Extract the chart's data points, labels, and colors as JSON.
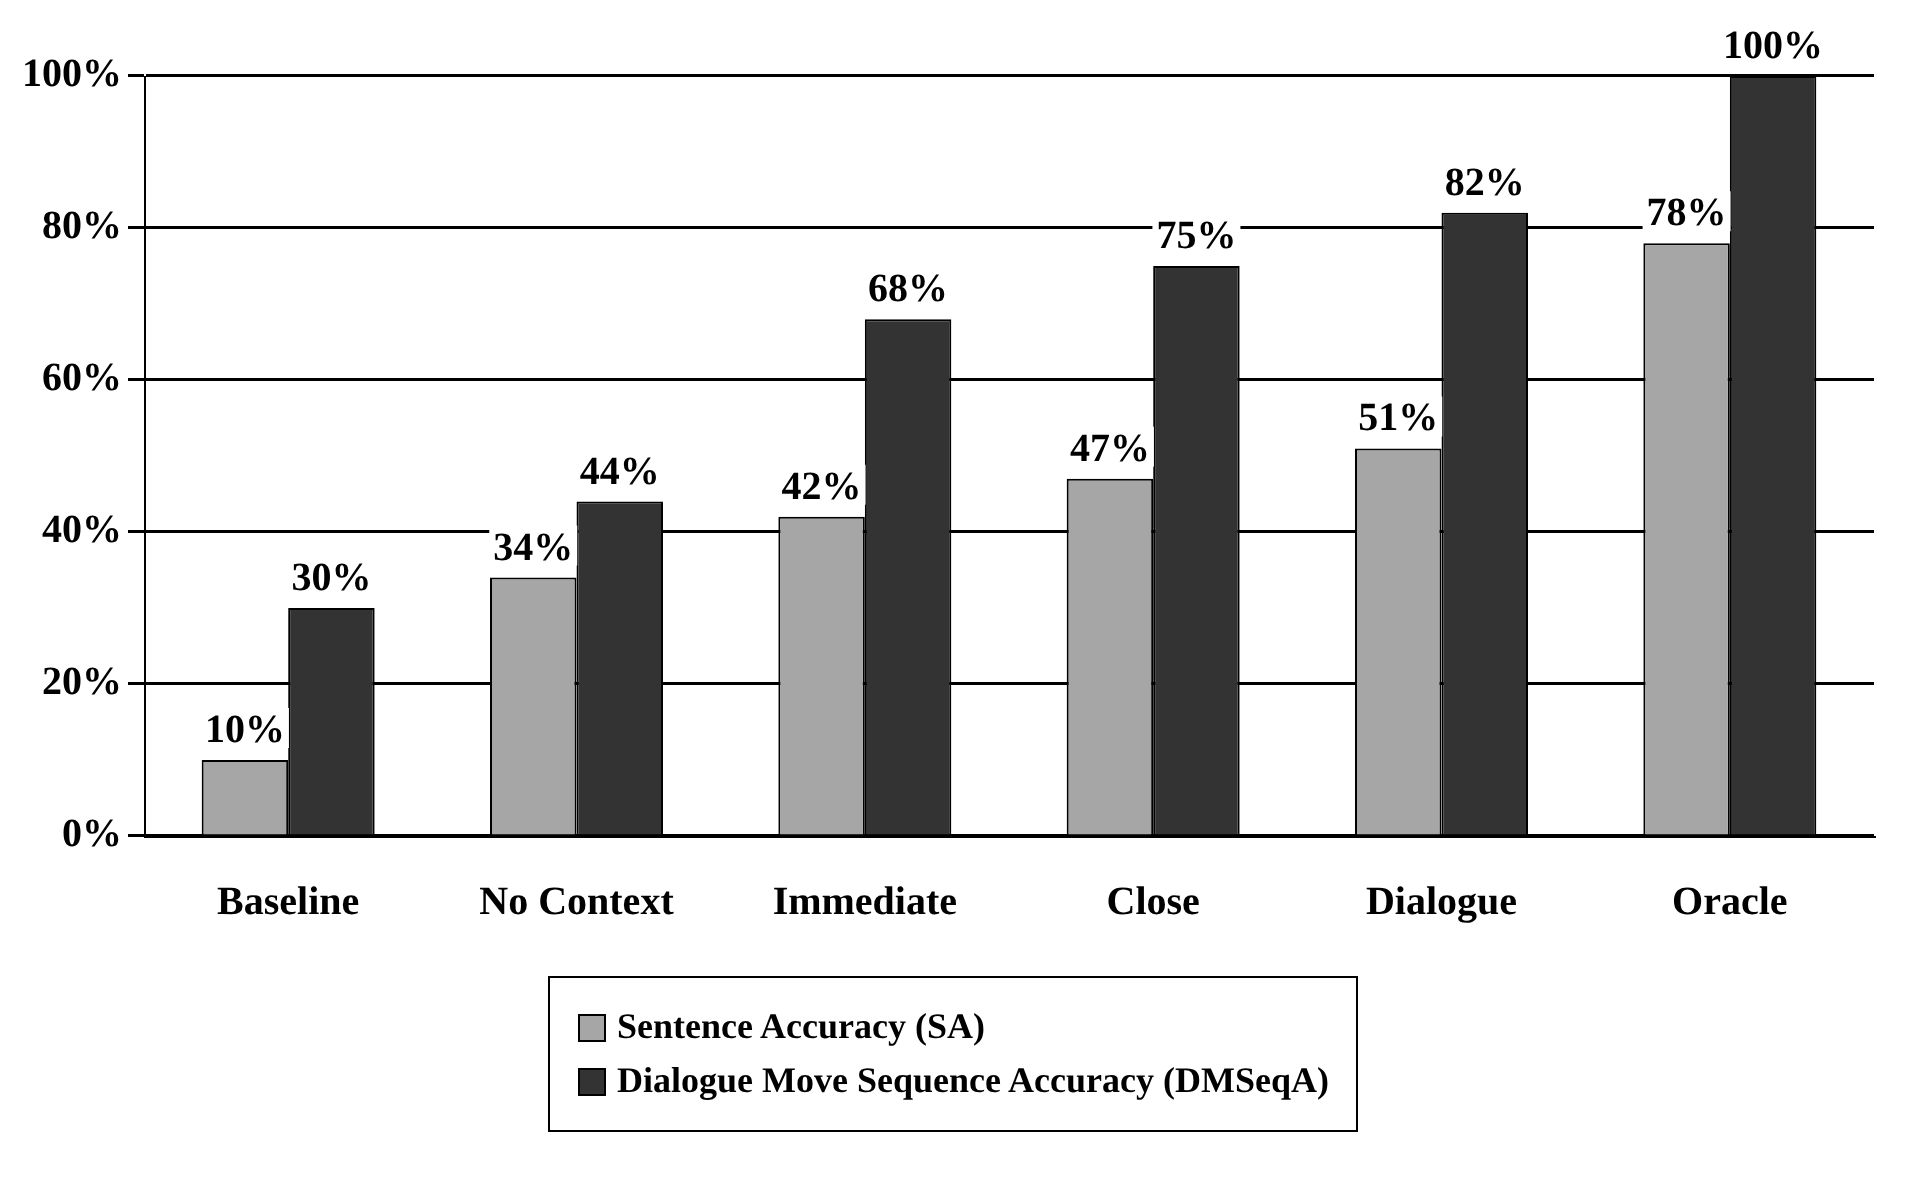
{
  "chart_data": {
    "type": "bar",
    "categories": [
      "Baseline",
      "No Context",
      "Immediate",
      "Close",
      "Dialogue",
      "Oracle"
    ],
    "series": [
      {
        "name": "Sentence Accuracy (SA)",
        "color": "#a6a6a6",
        "values": [
          10,
          34,
          42,
          47,
          51,
          78
        ],
        "value_labels": [
          "10%",
          "34%",
          "42%",
          "47%",
          "51%",
          "78%"
        ]
      },
      {
        "name": "Dialogue Move Sequence Accuracy (DMSeqA)",
        "color": "#333333",
        "values": [
          30,
          44,
          68,
          75,
          82,
          100
        ],
        "value_labels": [
          "30%",
          "44%",
          "68%",
          "75%",
          "82%",
          "100%"
        ]
      }
    ],
    "ylim": [
      0,
      100
    ],
    "yticks": [
      {
        "value": 0,
        "label": "0%"
      },
      {
        "value": 20,
        "label": "20%"
      },
      {
        "value": 40,
        "label": "40%"
      },
      {
        "value": 60,
        "label": "60%"
      },
      {
        "value": 80,
        "label": "80%"
      },
      {
        "value": 100,
        "label": "100%"
      }
    ],
    "grid": "y",
    "legend": "bottom"
  }
}
